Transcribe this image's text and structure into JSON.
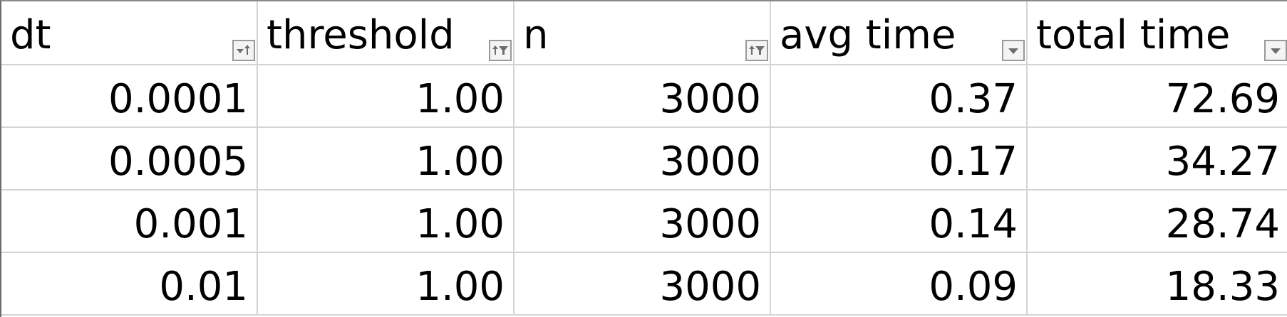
{
  "table": {
    "headers": [
      {
        "label": "dt",
        "filter_icon": "sort-ascending-icon"
      },
      {
        "label": "threshold",
        "filter_icon": "sort-filter-icon"
      },
      {
        "label": "n",
        "filter_icon": "sort-filter-icon"
      },
      {
        "label": "avg time",
        "filter_icon": "dropdown-arrow-icon"
      },
      {
        "label": "total time",
        "filter_icon": "dropdown-arrow-icon"
      }
    ],
    "rows": [
      [
        "0.0001",
        "1.00",
        "3000",
        "0.37",
        "72.69"
      ],
      [
        "0.0005",
        "1.00",
        "3000",
        "0.17",
        "34.27"
      ],
      [
        "0.001",
        "1.00",
        "3000",
        "0.14",
        "28.74"
      ],
      [
        "0.01",
        "1.00",
        "3000",
        "0.09",
        "18.33"
      ]
    ]
  },
  "colors": {
    "gridline": "#d4d4d4",
    "button_border": "#9a9a9a",
    "button_fill": "#f4f4f4",
    "icon": "#6d6d6d",
    "text": "#000000"
  }
}
